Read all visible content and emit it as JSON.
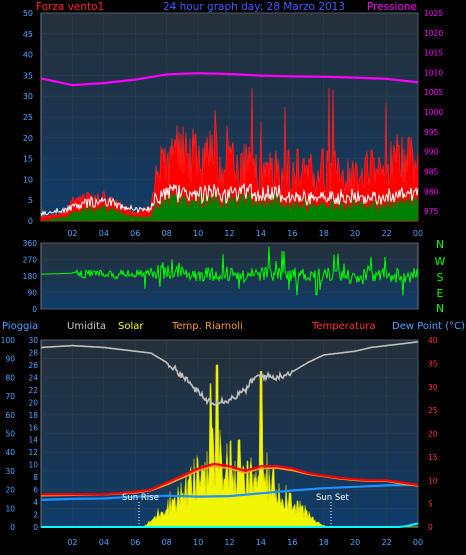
{
  "header": {
    "left_label": "Forza vento1",
    "title": "24 hour graph day: 28 Marzo 2013",
    "right_label": "Pressione"
  },
  "compass": [
    "N",
    "W",
    "S",
    "E",
    "N"
  ],
  "legend2": {
    "pioggia": "Pioggia",
    "umidita": "Umidita",
    "solar": "Solar",
    "riarnoli": "Temp. Riarnoli",
    "temperatura": "Temperatura",
    "dewpoint": "Dew Point (°C)"
  },
  "annotations": {
    "sunrise": "Sun Rise",
    "sunset": "Sun Set"
  },
  "colors": {
    "wind": "#ff2020",
    "gust_fill": "#ff0000",
    "avg_fill": "#008000",
    "pressure": "#ff00ff",
    "direction": "#00ff00",
    "humidity": "#c0c0c0",
    "solar": "#ffff00",
    "temperature": "#ff0000",
    "dewpoint": "#1e90ff",
    "rain": "#00ffff",
    "axis_left": "#4fa3ff",
    "axis_right": "#ff00ff",
    "axis_temp": "#ff3030"
  },
  "chart_data": [
    {
      "type": "area",
      "name": "wind_pressure",
      "x_ticks": [
        "02",
        "04",
        "06",
        "08",
        "10",
        "12",
        "14",
        "16",
        "18",
        "20",
        "22",
        "00"
      ],
      "y_left_ticks": [
        "0",
        "5",
        "10",
        "15",
        "20",
        "25",
        "30",
        "35",
        "40",
        "45",
        "50"
      ],
      "y_left_range": [
        0,
        50
      ],
      "y_right_ticks": [
        "975",
        "980",
        "985",
        "990",
        "995",
        "1000",
        "1005",
        "1010",
        "1015",
        "1020",
        "1025"
      ],
      "y_right_range": [
        972.5,
        1025
      ],
      "wind_gust_profile": [
        [
          0,
          1
        ],
        [
          1.5,
          2
        ],
        [
          2,
          5
        ],
        [
          3,
          6
        ],
        [
          4,
          6
        ],
        [
          5,
          4
        ],
        [
          6,
          2
        ],
        [
          7,
          3
        ],
        [
          7.3,
          12
        ],
        [
          8,
          14
        ],
        [
          9,
          17
        ],
        [
          10,
          16
        ],
        [
          11,
          15
        ],
        [
          12,
          14
        ],
        [
          13,
          13
        ],
        [
          14,
          13
        ],
        [
          15,
          12
        ],
        [
          16,
          12
        ],
        [
          17,
          12
        ],
        [
          18,
          12
        ],
        [
          19,
          12
        ],
        [
          20,
          11
        ],
        [
          21,
          12
        ],
        [
          22,
          13
        ],
        [
          23,
          14
        ],
        [
          24,
          14
        ]
      ],
      "wind_avg_profile": [
        [
          0,
          0
        ],
        [
          1.5,
          1
        ],
        [
          2,
          2
        ],
        [
          3,
          3
        ],
        [
          4,
          3
        ],
        [
          5,
          2
        ],
        [
          6,
          1
        ],
        [
          7,
          1
        ],
        [
          7.3,
          4
        ],
        [
          8,
          5
        ],
        [
          9,
          5
        ],
        [
          10,
          5
        ],
        [
          11,
          5
        ],
        [
          12,
          5
        ],
        [
          13,
          5
        ],
        [
          14,
          5
        ],
        [
          15,
          5
        ],
        [
          16,
          4
        ],
        [
          17,
          4
        ],
        [
          18,
          4
        ],
        [
          19,
          4
        ],
        [
          20,
          4
        ],
        [
          21,
          4
        ],
        [
          22,
          4
        ],
        [
          23,
          5
        ],
        [
          24,
          5
        ]
      ],
      "pressure": [
        [
          0,
          1008.5
        ],
        [
          2,
          1006.8
        ],
        [
          4,
          1007.3
        ],
        [
          6,
          1008.2
        ],
        [
          8,
          1009.5
        ],
        [
          10,
          1009.8
        ],
        [
          12,
          1009.6
        ],
        [
          14,
          1009.2
        ],
        [
          16,
          1009.0
        ],
        [
          18,
          1008.9
        ],
        [
          20,
          1008.7
        ],
        [
          22,
          1008.4
        ],
        [
          24,
          1007.5
        ]
      ]
    },
    {
      "type": "line",
      "name": "wind_direction",
      "y_ticks": [
        "0",
        "90",
        "180",
        "270",
        "360"
      ],
      "y_range": [
        0,
        360
      ],
      "direction_base": [
        [
          0,
          190
        ],
        [
          2,
          195
        ],
        [
          4,
          190
        ],
        [
          6,
          190
        ],
        [
          7,
          200
        ],
        [
          8,
          200
        ],
        [
          10,
          190
        ],
        [
          12,
          195
        ],
        [
          14,
          190
        ],
        [
          16,
          185
        ],
        [
          18,
          190
        ],
        [
          20,
          185
        ],
        [
          22,
          180
        ],
        [
          24,
          185
        ]
      ]
    },
    {
      "type": "line",
      "name": "temp_humidity_solar",
      "y_left_ticks": [
        "0",
        "10",
        "20",
        "30",
        "40",
        "50",
        "60",
        "70",
        "80",
        "90",
        "100"
      ],
      "y_left_range": [
        0,
        100
      ],
      "y_mid_ticks": [
        "0",
        "2",
        "4",
        "6",
        "8",
        "10",
        "12",
        "14",
        "16",
        "18",
        "20",
        "22",
        "24",
        "26",
        "28",
        "30"
      ],
      "y_mid_range": [
        0,
        30
      ],
      "y_right_ticks": [
        "0",
        "5",
        "10",
        "15",
        "20",
        "25",
        "30",
        "35",
        "40"
      ],
      "y_right_range": [
        0,
        40
      ],
      "humidity": [
        [
          0,
          96
        ],
        [
          2,
          97
        ],
        [
          4,
          96
        ],
        [
          6,
          94
        ],
        [
          7,
          93
        ],
        [
          8,
          88
        ],
        [
          9,
          81
        ],
        [
          10,
          72
        ],
        [
          10.5,
          68
        ],
        [
          11,
          67
        ],
        [
          12,
          68
        ],
        [
          13,
          73
        ],
        [
          13.5,
          79
        ],
        [
          14,
          81
        ],
        [
          15,
          80
        ],
        [
          16,
          83
        ],
        [
          17,
          88
        ],
        [
          18,
          92
        ],
        [
          19,
          93
        ],
        [
          20,
          94
        ],
        [
          21,
          96
        ],
        [
          22,
          97
        ],
        [
          23,
          98
        ],
        [
          24,
          99
        ]
      ],
      "temperature": [
        [
          0,
          7
        ],
        [
          2,
          7
        ],
        [
          4,
          7
        ],
        [
          6,
          7.5
        ],
        [
          7,
          8
        ],
        [
          8,
          9.5
        ],
        [
          9,
          11
        ],
        [
          10,
          12.5
        ],
        [
          11,
          13.5
        ],
        [
          12,
          13
        ],
        [
          13,
          12
        ],
        [
          14,
          13
        ],
        [
          15,
          13
        ],
        [
          16,
          12.5
        ],
        [
          17,
          11.5
        ],
        [
          18,
          11
        ],
        [
          19,
          10.5
        ],
        [
          20,
          10.2
        ],
        [
          21,
          10
        ],
        [
          22,
          10
        ],
        [
          23,
          9.5
        ],
        [
          24,
          9
        ]
      ],
      "temp_riarnoli": [
        [
          0,
          6.7
        ],
        [
          2,
          6.8
        ],
        [
          4,
          6.9
        ],
        [
          6,
          7.3
        ],
        [
          7,
          7.8
        ],
        [
          8,
          9
        ],
        [
          9,
          10.5
        ],
        [
          10,
          12
        ],
        [
          11,
          13
        ],
        [
          12,
          12.5
        ],
        [
          13,
          11.6
        ],
        [
          14,
          12.5
        ],
        [
          15,
          12.6
        ],
        [
          16,
          12.1
        ],
        [
          17,
          11.3
        ],
        [
          18,
          10.8
        ],
        [
          19,
          10.3
        ],
        [
          20,
          10
        ],
        [
          21,
          9.8
        ],
        [
          22,
          9.8
        ],
        [
          23,
          9.2
        ],
        [
          24,
          8.8
        ]
      ],
      "dewpoint": [
        [
          0,
          5.8
        ],
        [
          2,
          6
        ],
        [
          4,
          6.1
        ],
        [
          6,
          6.5
        ],
        [
          8,
          6.7
        ],
        [
          10,
          6.5
        ],
        [
          12,
          6.6
        ],
        [
          14,
          7.2
        ],
        [
          16,
          7.8
        ],
        [
          18,
          8.3
        ],
        [
          20,
          8.6
        ],
        [
          22,
          8.9
        ],
        [
          24,
          9
        ]
      ],
      "solar_envelope": [
        [
          0,
          0
        ],
        [
          6.5,
          0
        ],
        [
          7,
          1
        ],
        [
          8,
          4
        ],
        [
          9,
          6
        ],
        [
          10,
          9
        ],
        [
          10.7,
          12
        ],
        [
          11,
          13
        ],
        [
          11.5,
          12
        ],
        [
          12,
          11
        ],
        [
          12.5,
          9
        ],
        [
          13,
          8
        ],
        [
          14,
          10
        ],
        [
          15,
          7
        ],
        [
          16,
          5
        ],
        [
          17,
          2
        ],
        [
          17.8,
          0.5
        ],
        [
          18.2,
          0
        ],
        [
          24,
          0
        ]
      ],
      "solar_spikes": [
        [
          10.8,
          23
        ],
        [
          11.2,
          26
        ],
        [
          14.0,
          25
        ],
        [
          12.6,
          14
        ]
      ],
      "rain": [
        [
          0,
          0
        ],
        [
          22.8,
          0
        ],
        [
          23.3,
          0.5
        ],
        [
          24,
          2
        ]
      ]
    }
  ]
}
